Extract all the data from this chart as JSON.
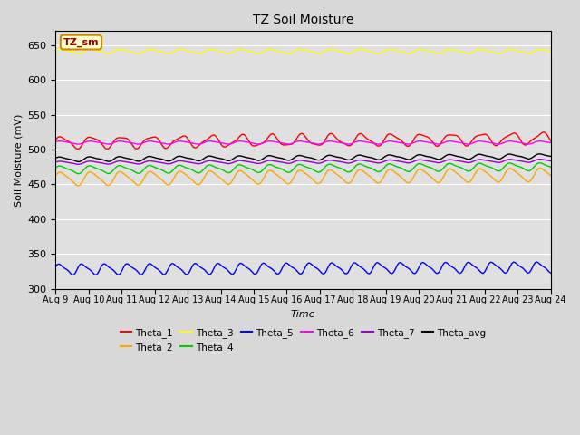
{
  "title": "TZ Soil Moisture",
  "xlabel": "Time",
  "ylabel": "Soil Moisture (mV)",
  "ylim": [
    300,
    670
  ],
  "yticks": [
    300,
    350,
    400,
    450,
    500,
    550,
    600,
    650
  ],
  "x_start": 0,
  "x_end": 15,
  "num_points": 2000,
  "background_color": "#d8d8d8",
  "plot_bg_color": "#e0e0e0",
  "legend_label": "TZ_sm",
  "series": {
    "Theta_1": {
      "color": "#ff0000",
      "base": 510,
      "amplitude": 8,
      "freq": 1.1,
      "freq2": 2.3,
      "amp2": 2,
      "trend": 0.4
    },
    "Theta_2": {
      "color": "#ffa500",
      "base": 458,
      "amplitude": 9,
      "freq": 1.1,
      "freq2": 2.2,
      "amp2": 2,
      "trend": 0.4
    },
    "Theta_3": {
      "color": "#ffff00",
      "base": 641,
      "amplitude": 3,
      "freq": 1.1,
      "freq2": 2.2,
      "amp2": 1,
      "trend": 0.0
    },
    "Theta_4": {
      "color": "#00cc00",
      "base": 471,
      "amplitude": 5,
      "freq": 1.1,
      "freq2": 2.2,
      "amp2": 1.5,
      "trend": 0.3
    },
    "Theta_5": {
      "color": "#0000ff",
      "base": 328,
      "amplitude": 7,
      "freq": 1.45,
      "freq2": 2.9,
      "amp2": 2,
      "trend": 0.2
    },
    "Theta_6": {
      "color": "#ff00ff",
      "base": 510,
      "amplitude": 2,
      "freq": 1.1,
      "freq2": 2.2,
      "amp2": 0.5,
      "trend": 0.0
    },
    "Theta_7": {
      "color": "#9900cc",
      "base": 481,
      "amplitude": 2,
      "freq": 1.1,
      "freq2": 2.2,
      "amp2": 0.5,
      "trend": 0.2
    },
    "Theta_avg": {
      "color": "#000000",
      "base": 486,
      "amplitude": 3,
      "freq": 1.1,
      "freq2": 2.2,
      "amp2": 1,
      "trend": 0.3
    }
  },
  "xtick_labels": [
    "Aug 9",
    "Aug 10",
    "Aug 11",
    "Aug 12",
    "Aug 13",
    "Aug 14",
    "Aug 15",
    "Aug 16",
    "Aug 17",
    "Aug 18",
    "Aug 19",
    "Aug 20",
    "Aug 21",
    "Aug 22",
    "Aug 23",
    "Aug 24"
  ],
  "xtick_positions": [
    0,
    1,
    2,
    3,
    4,
    5,
    6,
    7,
    8,
    9,
    10,
    11,
    12,
    13,
    14,
    15
  ]
}
